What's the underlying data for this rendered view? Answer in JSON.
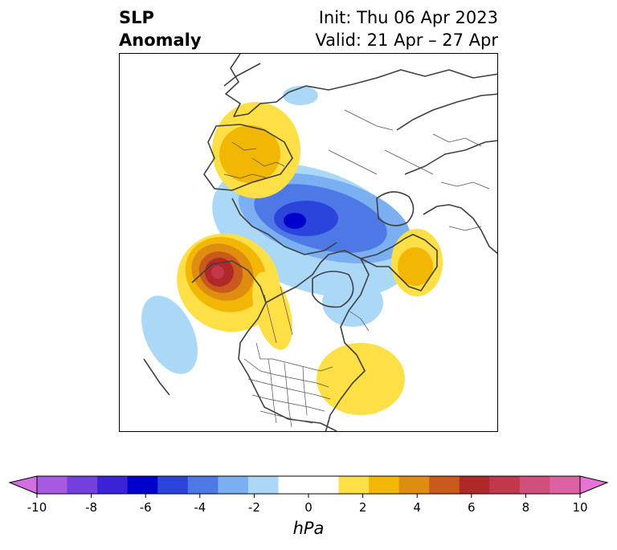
{
  "title": {
    "variable_line1": "SLP",
    "variable_line2": "Anomaly",
    "init_line": "Init: Thu 06 Apr 2023",
    "valid_line": "Valid: 21 Apr – 27 Apr"
  },
  "colorbar": {
    "units": "hPa",
    "ticks": [
      "-10",
      "-8",
      "-6",
      "-4",
      "-2",
      "0",
      "2",
      "4",
      "6",
      "8",
      "10"
    ],
    "colors": [
      "#d36fe0",
      "#a55ae0",
      "#7340dd",
      "#3c22d6",
      "#0000cc",
      "#2b44dc",
      "#4e78e6",
      "#7ab0f2",
      "#acd8f8",
      "#ffffff",
      "#ffffff",
      "#fedf45",
      "#f2b705",
      "#df8d10",
      "#c95a1c",
      "#b02828",
      "#c3374d",
      "#d14f7c",
      "#dc62a4",
      "#e773d6"
    ]
  },
  "anomaly_colors": {
    "light_blue": "#acd8f8",
    "blue_1": "#7ab0f2",
    "blue_2": "#4e78e6",
    "blue_3": "#2b44dc",
    "blue_4": "#0000cc",
    "yellow": "#fedf45",
    "gold": "#f2b705",
    "orange": "#df8d10",
    "dark_orange": "#c95a1c",
    "red": "#b02828",
    "crimson": "#c3374d"
  }
}
